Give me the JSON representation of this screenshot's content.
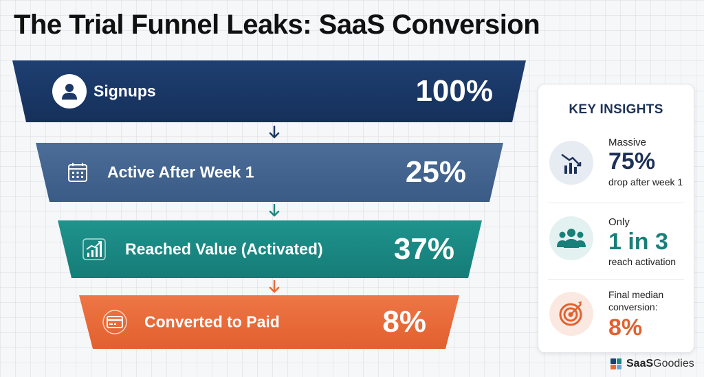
{
  "title": "The Trial Funnel Leaks: SaaS Conversion",
  "funnel": {
    "stages": [
      {
        "label": "Signups",
        "value": "100%",
        "icon": "user-icon",
        "color": "#1b3866"
      },
      {
        "label": "Active After Week 1",
        "value": "25%",
        "icon": "calendar-icon",
        "color": "#44668f"
      },
      {
        "label": "Reached Value (Activated)",
        "value": "37%",
        "icon": "growth-chart-icon",
        "color": "#1a8882"
      },
      {
        "label": "Converted to Paid",
        "value": "8%",
        "icon": "credit-card-icon",
        "color": "#e96a38"
      }
    ],
    "arrow_colors": [
      "#1b3866",
      "#1a8882",
      "#e96a38"
    ]
  },
  "insights": {
    "title": "KEY INSIGHTS",
    "items": [
      {
        "pre": "Massive",
        "big": "75%",
        "post": "drop after week 1",
        "icon": "declining-chart-icon",
        "color": "#1e3258"
      },
      {
        "pre": "Only",
        "big": "1 in 3",
        "post": "reach activation",
        "icon": "people-group-icon",
        "color": "#187f79"
      },
      {
        "pre_line1": "Final median",
        "pre_line2": "conversion:",
        "big": "8%",
        "icon": "target-icon",
        "color": "#e2602f"
      }
    ]
  },
  "brand": {
    "name_bold": "SaaS",
    "name_rest": "Goodies",
    "icon": "saasgoodies-logo-icon"
  }
}
